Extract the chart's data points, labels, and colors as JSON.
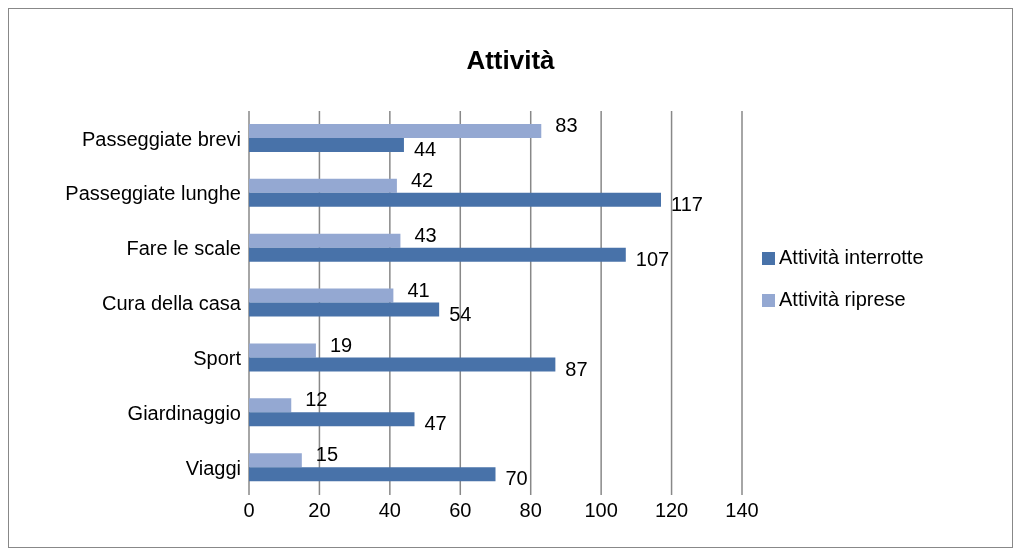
{
  "chart_data": {
    "type": "bar",
    "orientation": "horizontal",
    "title": "Attività",
    "categories": [
      "Passeggiate brevi",
      "Passeggiate lunghe",
      "Fare le scale",
      "Cura della casa",
      "Sport",
      "Giardinaggio",
      "Viaggi"
    ],
    "series": [
      {
        "name": "Attività riprese",
        "color": "#94a8d2",
        "values": [
          83,
          42,
          43,
          41,
          19,
          12,
          15
        ]
      },
      {
        "name": "Attività interrotte",
        "color": "#4872a9",
        "values": [
          44,
          117,
          107,
          54,
          87,
          47,
          70
        ]
      }
    ],
    "xlim": [
      0,
      140
    ],
    "xticks": [
      0,
      20,
      40,
      60,
      80,
      100,
      120,
      140
    ],
    "grid": "x",
    "legend": "right",
    "data_labels": true
  }
}
